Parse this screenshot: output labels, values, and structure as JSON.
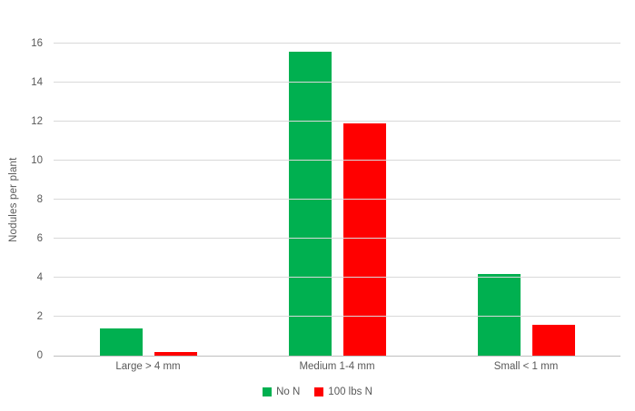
{
  "chart_data": {
    "type": "bar",
    "title": "",
    "categories": [
      "Large > 4 mm",
      "Medium 1-4 mm",
      "Small < 1 mm"
    ],
    "series": [
      {
        "name": "No N",
        "color": "#00B050",
        "values": [
          1.4,
          15.6,
          4.2
        ]
      },
      {
        "name": "100 lbs N",
        "color": "#FF0000",
        "values": [
          0.2,
          11.9,
          1.6
        ]
      }
    ],
    "xlabel": "",
    "ylabel": "Nodules per plant",
    "ylim": [
      0,
      16
    ],
    "yticks": [
      0,
      2,
      4,
      6,
      8,
      10,
      12,
      14,
      16
    ],
    "grid": true,
    "legend_position": "bottom"
  },
  "style": {
    "background": "#FFFFFF",
    "text_color": "#595959",
    "gridline_color": "#D9D9D9",
    "axis_line_color": "#BFBFBF"
  }
}
